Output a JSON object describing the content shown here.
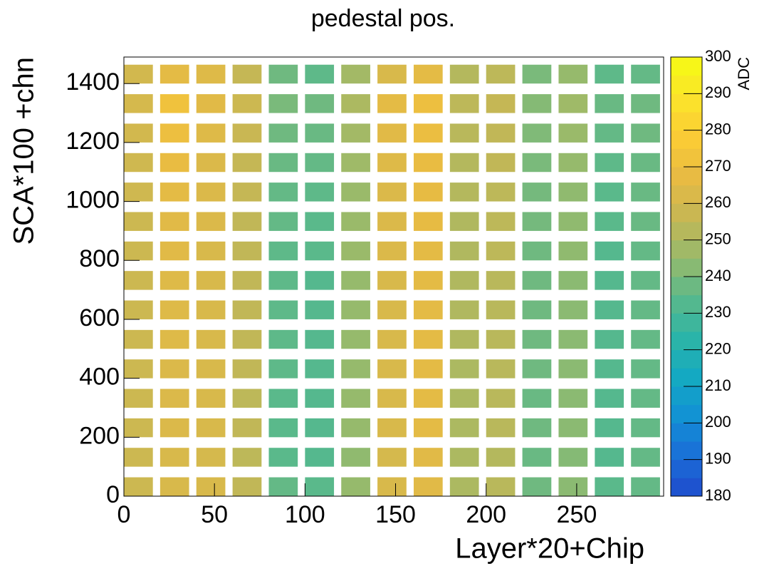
{
  "chart_data": {
    "type": "heatmap",
    "title": "pedestal pos.",
    "x_label": "Layer*20+Chip",
    "y_label": "SCA*100 +chn",
    "z_label": "ADC",
    "x": [
      0,
      20,
      40,
      60,
      80,
      100,
      120,
      140,
      160,
      180,
      200,
      220,
      240,
      260,
      280
    ],
    "x_width": 16,
    "y": [
      0,
      100,
      200,
      300,
      400,
      500,
      600,
      700,
      800,
      900,
      1000,
      1100,
      1200,
      1300,
      1400
    ],
    "y_height": 64,
    "values": [
      [
        258,
        262,
        262,
        255,
        236,
        234,
        245,
        262,
        265,
        250,
        253,
        238,
        243,
        234,
        236
      ],
      [
        258,
        262,
        261,
        254,
        234,
        233,
        244,
        261,
        265,
        250,
        252,
        237,
        242,
        233,
        236
      ],
      [
        258,
        263,
        262,
        255,
        234,
        233,
        245,
        262,
        266,
        250,
        253,
        238,
        243,
        233,
        236
      ],
      [
        258,
        263,
        262,
        254,
        234,
        233,
        245,
        262,
        266,
        250,
        253,
        237,
        243,
        233,
        236
      ],
      [
        258,
        263,
        262,
        255,
        235,
        233,
        245,
        262,
        266,
        250,
        253,
        238,
        243,
        233,
        236
      ],
      [
        258,
        264,
        262,
        255,
        235,
        233,
        245,
        262,
        266,
        251,
        253,
        238,
        243,
        233,
        236
      ],
      [
        258,
        264,
        262,
        255,
        235,
        233,
        245,
        262,
        266,
        251,
        253,
        238,
        243,
        233,
        236
      ],
      [
        258,
        264,
        262,
        255,
        235,
        233,
        245,
        262,
        266,
        251,
        253,
        238,
        243,
        233,
        236
      ],
      [
        258,
        265,
        262,
        255,
        235,
        234,
        246,
        263,
        266,
        251,
        254,
        238,
        244,
        233,
        236
      ],
      [
        258,
        265,
        263,
        255,
        236,
        234,
        246,
        263,
        267,
        251,
        254,
        239,
        244,
        234,
        237
      ],
      [
        259,
        266,
        263,
        256,
        236,
        235,
        246,
        263,
        267,
        252,
        254,
        239,
        244,
        234,
        237
      ],
      [
        259,
        268,
        263,
        256,
        237,
        236,
        247,
        264,
        268,
        252,
        255,
        240,
        245,
        235,
        237
      ],
      [
        260,
        270,
        264,
        257,
        238,
        237,
        248,
        265,
        269,
        253,
        255,
        241,
        246,
        236,
        238
      ],
      [
        261,
        272,
        265,
        258,
        240,
        238,
        250,
        266,
        270,
        254,
        256,
        242,
        247,
        237,
        238
      ],
      [
        260,
        266,
        264,
        256,
        238,
        235,
        248,
        262,
        266,
        252,
        254,
        240,
        245,
        235,
        236
      ]
    ],
    "xlim": [
      0,
      298
    ],
    "ylim": [
      0,
      1490
    ],
    "zlim": [
      180,
      300
    ],
    "xticks": [
      0,
      50,
      100,
      150,
      200,
      250
    ],
    "yticks": [
      0,
      200,
      400,
      600,
      800,
      1000,
      1200,
      1400
    ],
    "zticks": [
      180,
      190,
      200,
      210,
      220,
      230,
      240,
      250,
      260,
      270,
      280,
      290,
      300
    ],
    "colormap": [
      "#1f4bcc",
      "#1a6ed8",
      "#1291d4",
      "#14a9c2",
      "#2db5a6",
      "#5cb98a",
      "#98ba6b",
      "#c7b754",
      "#e8bb43",
      "#fbcc35",
      "#fbe42a",
      "#f6fb12"
    ]
  }
}
